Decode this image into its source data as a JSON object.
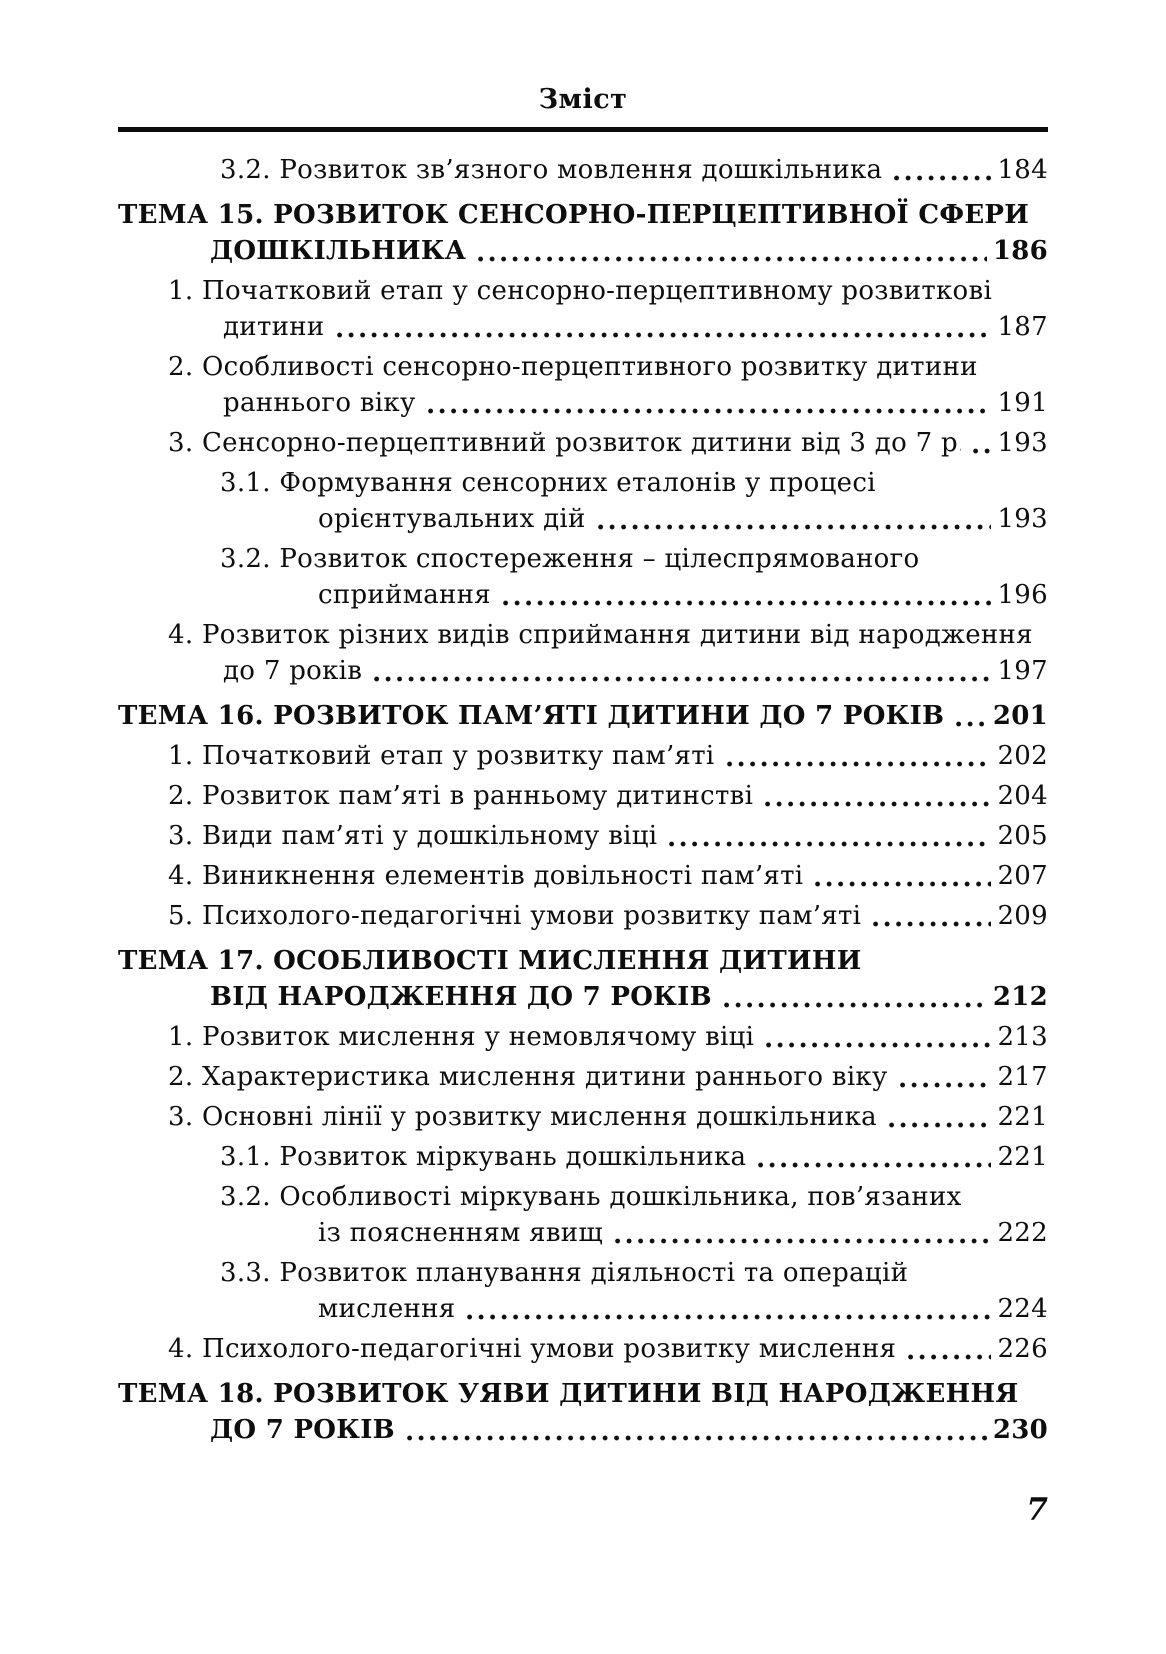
{
  "page": {
    "header_title": "Зміст",
    "folio": "7"
  },
  "toc": {
    "entries": [
      {
        "type": "sub",
        "lines": [
          {
            "text": "3.2. Розвиток зв’язного мовлення дошкільника",
            "page": "184"
          }
        ]
      },
      {
        "type": "tema",
        "lines": [
          {
            "text": "ТЕМА 15. РОЗВИТОК СЕНСОРНО-ПЕРЦЕПТИВНОЇ СФЕРИ"
          },
          {
            "text": "ДОШКІЛЬНИКА",
            "page": "186"
          }
        ]
      },
      {
        "type": "item",
        "lines": [
          {
            "text": "1. Початковий етап у сенсорно-перцептивному розвиткові"
          },
          {
            "text": "дитини",
            "page": "187"
          }
        ]
      },
      {
        "type": "item",
        "lines": [
          {
            "text": "2. Особливості сенсорно-перцептивного розвитку дитини"
          },
          {
            "text": "раннього віку",
            "page": "191"
          }
        ]
      },
      {
        "type": "item",
        "lines": [
          {
            "text": "3. Сенсорно-перцептивний розвиток дитини від 3 до 7 р.",
            "page": "193"
          }
        ]
      },
      {
        "type": "sub",
        "lines": [
          {
            "text": "3.1. Формування сенсорних еталонів у процесі"
          },
          {
            "text": "орієнтувальних дій",
            "page": "193"
          }
        ]
      },
      {
        "type": "sub",
        "lines": [
          {
            "text": "3.2. Розвиток спостереження – цілеспрямованого"
          },
          {
            "text": "сприймання",
            "page": "196"
          }
        ]
      },
      {
        "type": "item",
        "lines": [
          {
            "text": "4. Розвиток різних видів сприймання дитини від народження"
          },
          {
            "text": "до 7 років",
            "page": "197"
          }
        ]
      },
      {
        "type": "tema",
        "lines": [
          {
            "text": "ТЕМА 16. РОЗВИТОК ПАМ’ЯТІ ДИТИНИ ДО 7 РОКІВ",
            "page": "201"
          }
        ]
      },
      {
        "type": "item",
        "lines": [
          {
            "text": "1. Початковий етап у розвитку пам’яті",
            "page": "202"
          }
        ]
      },
      {
        "type": "item",
        "lines": [
          {
            "text": "2. Розвиток пам’яті в ранньому дитинстві",
            "page": "204"
          }
        ]
      },
      {
        "type": "item",
        "lines": [
          {
            "text": "3. Види пам’яті у дошкільному віці",
            "page": "205"
          }
        ]
      },
      {
        "type": "item",
        "lines": [
          {
            "text": "4. Виникнення елементів довільності пам’яті",
            "page": "207"
          }
        ]
      },
      {
        "type": "item",
        "lines": [
          {
            "text": "5. Психолого-педагогічні умови розвитку пам’яті",
            "page": "209"
          }
        ]
      },
      {
        "type": "tema",
        "lines": [
          {
            "text": "ТЕМА 17. ОСОБЛИВОСТІ МИСЛЕННЯ ДИТИНИ"
          },
          {
            "text": "ВІД НАРОДЖЕННЯ ДО 7 РОКІВ",
            "page": "212"
          }
        ]
      },
      {
        "type": "item",
        "lines": [
          {
            "text": "1. Розвиток мислення у немовлячому віці",
            "page": "213"
          }
        ]
      },
      {
        "type": "item",
        "lines": [
          {
            "text": "2. Характеристика мислення дитини раннього віку",
            "page": "217"
          }
        ]
      },
      {
        "type": "item",
        "lines": [
          {
            "text": "3. Основні лінії у розвитку мислення дошкільника",
            "page": "221"
          }
        ]
      },
      {
        "type": "sub",
        "lines": [
          {
            "text": "3.1. Розвиток міркувань дошкільника",
            "page": "221"
          }
        ]
      },
      {
        "type": "sub",
        "lines": [
          {
            "text": "3.2. Особливості міркувань дошкільника, пов’язаних"
          },
          {
            "text": "із поясненням явищ",
            "page": "222"
          }
        ]
      },
      {
        "type": "sub",
        "lines": [
          {
            "text": "3.3. Розвиток планування діяльності та операцій"
          },
          {
            "text": "мислення",
            "page": "224"
          }
        ]
      },
      {
        "type": "item",
        "lines": [
          {
            "text": "4. Психолого-педагогічні умови розвитку мислення",
            "page": "226"
          }
        ]
      },
      {
        "type": "tema",
        "lines": [
          {
            "text": "ТЕМА 18. РОЗВИТОК УЯВИ ДИТИНИ ВІД НАРОДЖЕННЯ"
          },
          {
            "text": "ДО 7 РОКІВ",
            "page": "230"
          }
        ]
      }
    ]
  }
}
